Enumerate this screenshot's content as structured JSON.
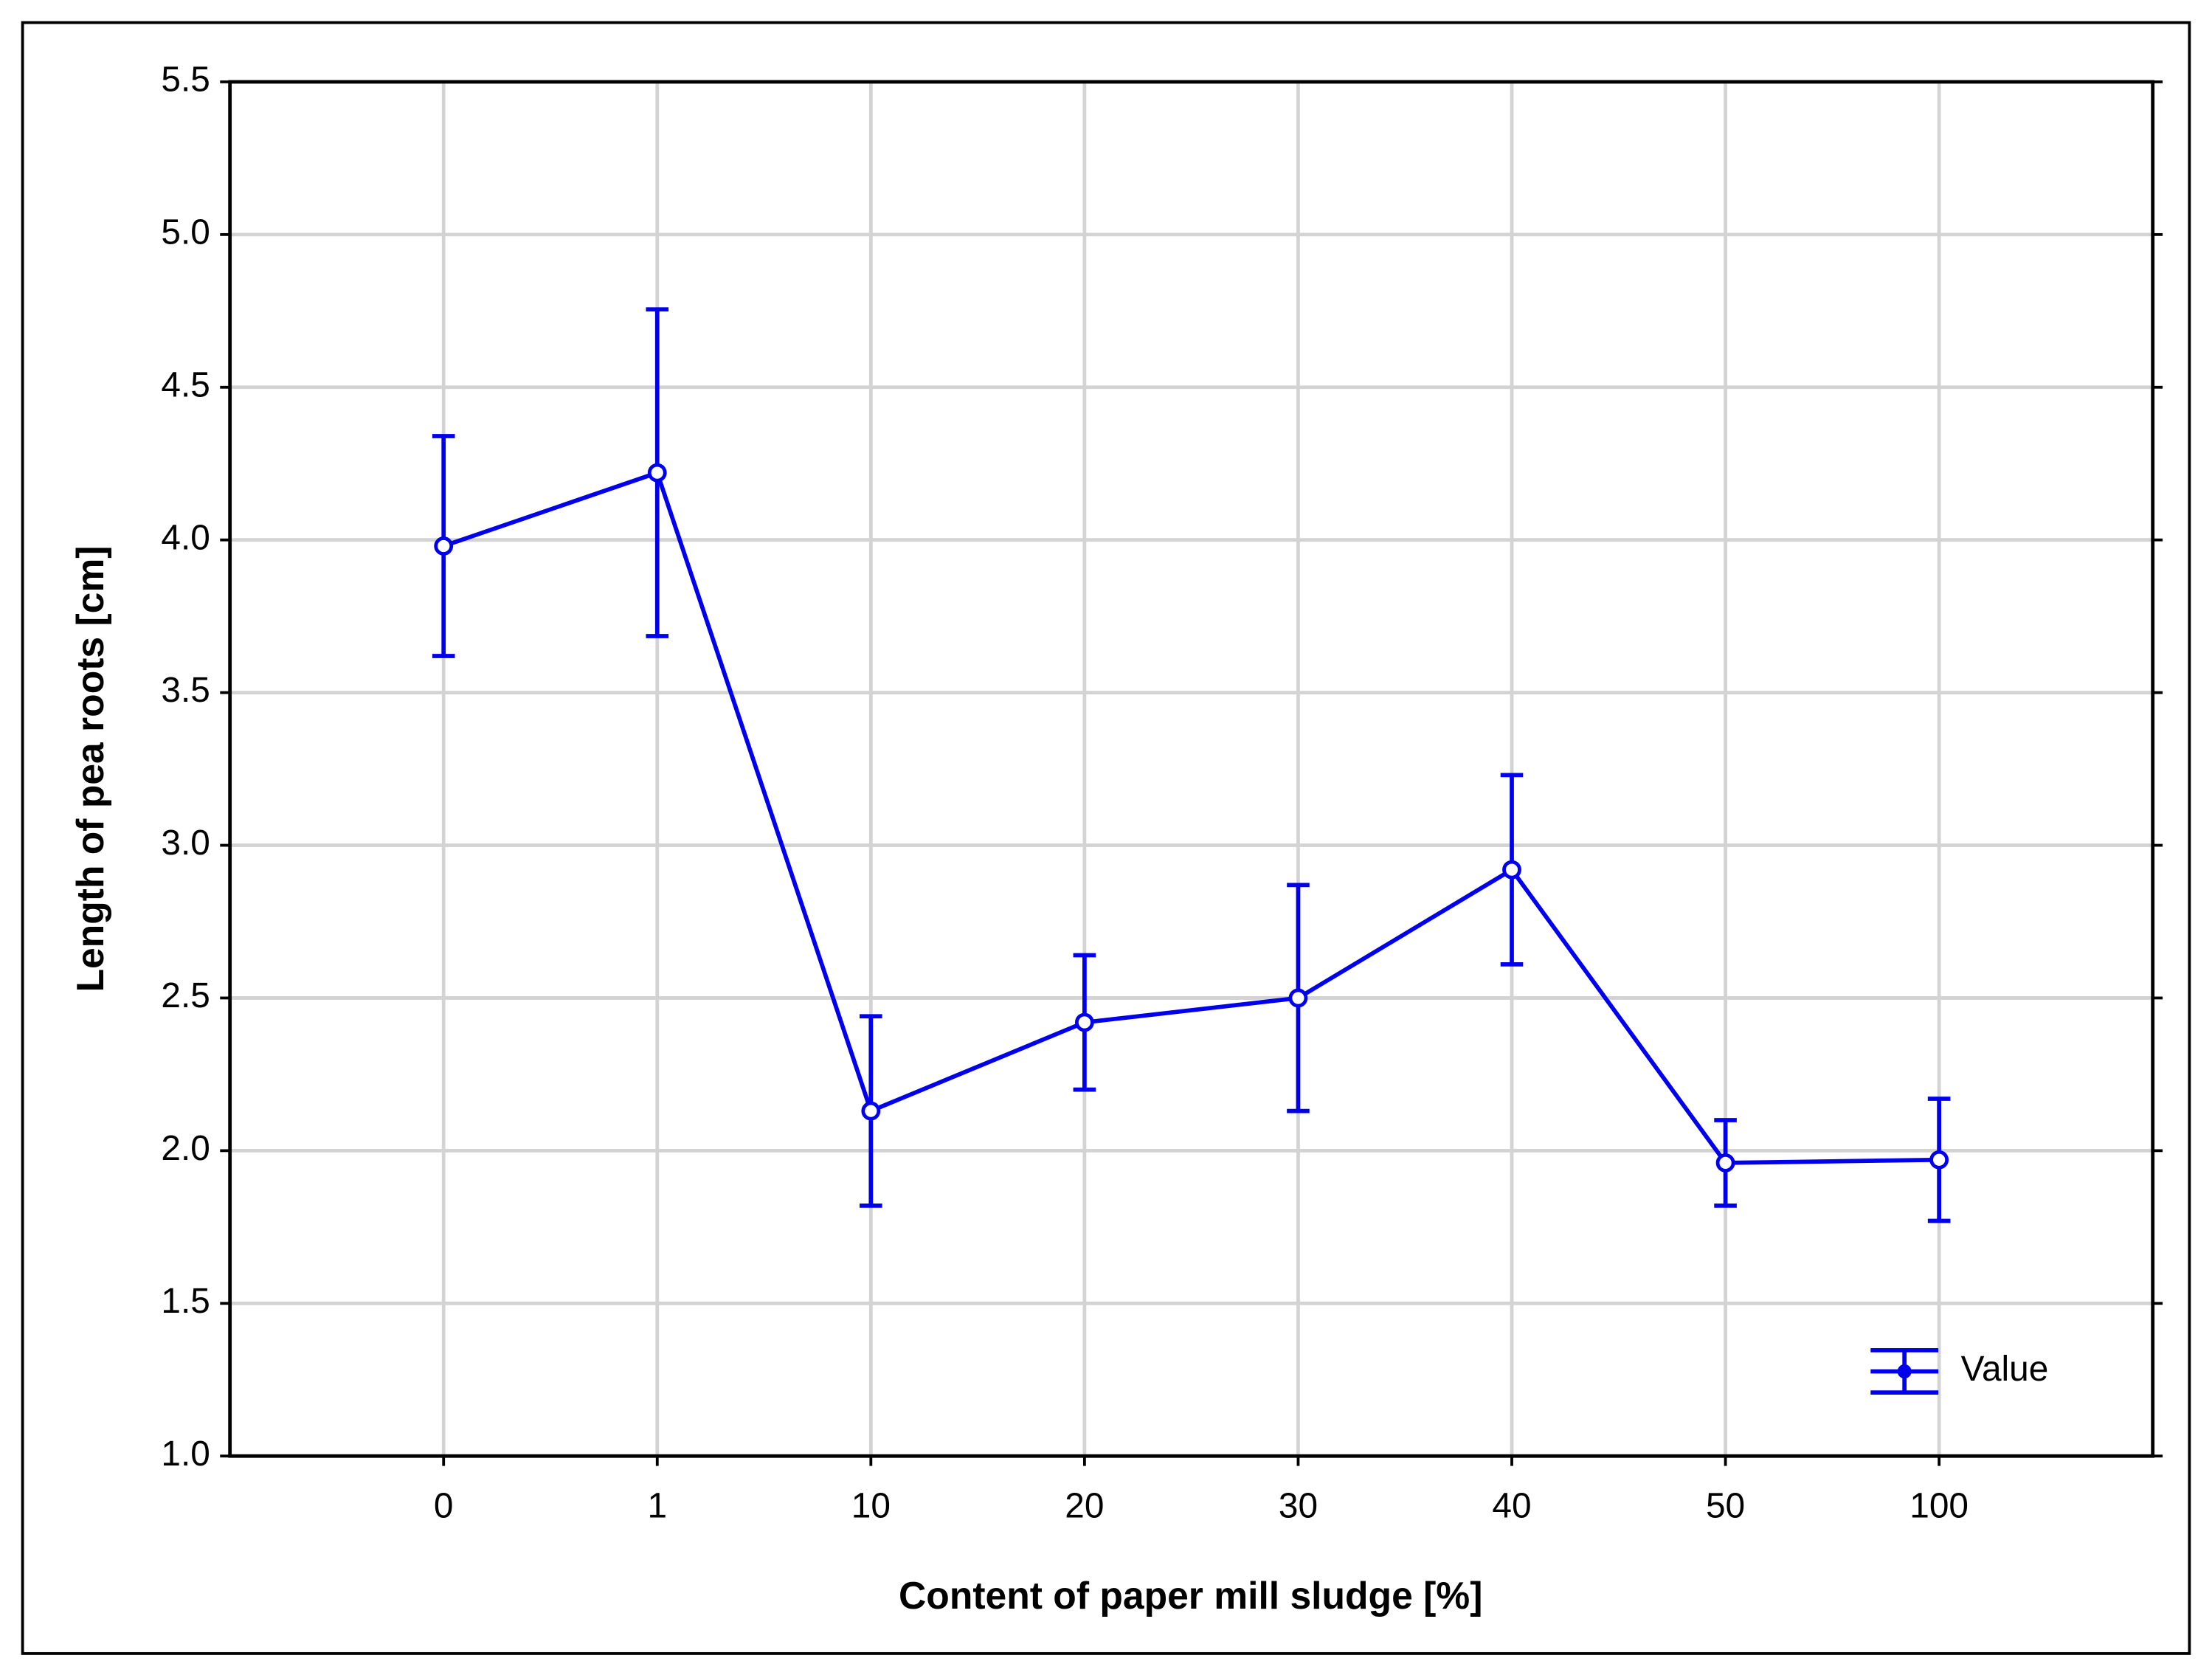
{
  "chart_data": {
    "type": "line",
    "x_label": "Content of paper mill sludge [%]",
    "y_label": "Length of pea roots [cm]",
    "categories": [
      "0",
      "1",
      "10",
      "20",
      "30",
      "40",
      "50",
      "100"
    ],
    "series": [
      {
        "name": "Value",
        "color": "#0000ee",
        "values": [
          3.98,
          4.22,
          2.13,
          2.42,
          2.5,
          2.92,
          1.96,
          1.97
        ],
        "errors": [
          0.36,
          0.535,
          0.31,
          0.22,
          0.37,
          0.31,
          0.14,
          0.2
        ]
      }
    ],
    "ylim": [
      1.0,
      5.5
    ],
    "yticks": [
      {
        "value": 1,
        "label": "1.0"
      },
      1.5,
      {
        "value": 2,
        "label": "2.0"
      },
      2.5,
      {
        "value": 3,
        "label": "3.0"
      },
      3.5,
      {
        "value": 4,
        "label": "4.0"
      },
      4.5,
      {
        "value": 5,
        "label": "5.0"
      },
      5.5
    ],
    "grid": true,
    "legend": "lower right"
  }
}
